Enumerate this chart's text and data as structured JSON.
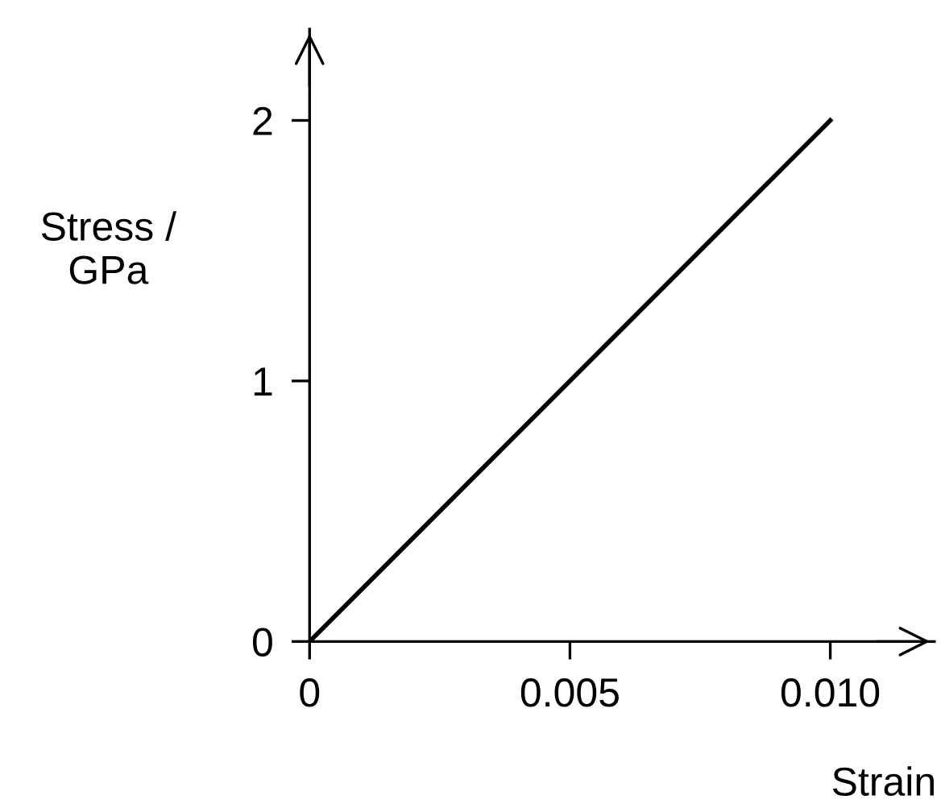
{
  "chart_data": {
    "type": "line",
    "xlabel": "Strain",
    "ylabel": "Stress /\nGPa",
    "x": [
      0,
      0.01
    ],
    "series": [
      {
        "color": "#000000",
        "values": [
          0,
          2
        ]
      }
    ],
    "xlim": [
      0,
      0.012
    ],
    "ylim": [
      0,
      2.35
    ],
    "xticks": [
      0,
      0.005,
      {
        "value": 0.01,
        "label": "0.010"
      }
    ],
    "yticks": [
      0,
      1,
      2
    ],
    "grid": false,
    "marker": "none",
    "line_style": "solid"
  }
}
